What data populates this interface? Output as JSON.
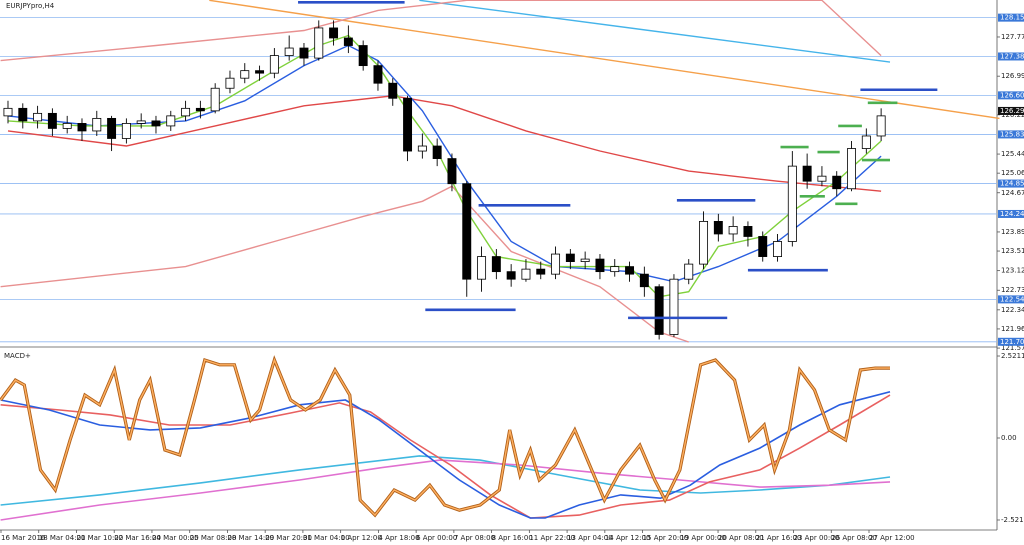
{
  "chart_data": [
    {
      "type": "candlestick",
      "title": "EURJPYpro,H4",
      "open": [
        126.2,
        126.35,
        126.1,
        126.25,
        125.95,
        126.05,
        125.9,
        126.15,
        125.75,
        126.05,
        126.1,
        126.0,
        126.2,
        126.35,
        126.3,
        126.75,
        126.95,
        127.1,
        127.05,
        127.4,
        127.55,
        127.35,
        127.95,
        127.75,
        127.6,
        127.2,
        126.85,
        126.55,
        125.5,
        125.6,
        125.35,
        124.85,
        122.95,
        123.4,
        123.1,
        122.95,
        123.15,
        123.05,
        123.45,
        123.3,
        123.35,
        123.1,
        123.2,
        123.05,
        122.8,
        121.85,
        122.95,
        123.25,
        124.1,
        123.85,
        124.0,
        123.8,
        123.4,
        123.7,
        125.2,
        124.9,
        125.0,
        124.75,
        125.55,
        125.8
      ],
      "high": [
        126.5,
        126.45,
        126.4,
        126.35,
        126.2,
        126.15,
        126.3,
        126.2,
        126.15,
        126.25,
        126.2,
        126.3,
        126.5,
        126.5,
        126.85,
        127.1,
        127.25,
        127.2,
        127.55,
        127.8,
        127.65,
        128.1,
        128.1,
        128.0,
        127.7,
        127.3,
        126.95,
        126.6,
        125.85,
        125.75,
        125.45,
        124.9,
        123.6,
        123.55,
        123.25,
        123.35,
        123.3,
        123.6,
        123.55,
        123.5,
        123.45,
        123.35,
        123.3,
        123.2,
        122.85,
        123.05,
        123.35,
        124.3,
        124.25,
        124.2,
        124.1,
        123.9,
        123.85,
        125.5,
        125.45,
        125.2,
        125.1,
        125.7,
        125.95,
        126.35
      ],
      "low": [
        126.05,
        125.95,
        125.95,
        125.8,
        125.85,
        125.7,
        125.8,
        125.5,
        125.65,
        125.95,
        125.85,
        125.9,
        126.1,
        126.15,
        126.25,
        126.65,
        126.85,
        126.9,
        126.95,
        127.3,
        127.2,
        127.3,
        127.6,
        127.45,
        127.1,
        126.7,
        126.4,
        125.3,
        125.35,
        125.2,
        124.7,
        122.6,
        122.7,
        122.95,
        122.8,
        122.9,
        122.95,
        122.95,
        123.15,
        123.15,
        122.95,
        123.0,
        122.9,
        122.6,
        121.75,
        121.8,
        122.85,
        123.15,
        123.7,
        123.7,
        123.6,
        123.3,
        123.3,
        123.6,
        124.75,
        124.8,
        124.6,
        124.7,
        125.45,
        125.7
      ],
      "close": [
        126.35,
        126.1,
        126.25,
        125.95,
        126.05,
        125.9,
        126.15,
        125.75,
        126.05,
        126.1,
        126.0,
        126.2,
        126.35,
        126.3,
        126.75,
        126.95,
        127.1,
        127.05,
        127.4,
        127.55,
        127.35,
        127.95,
        127.75,
        127.6,
        127.2,
        126.85,
        126.55,
        125.5,
        125.6,
        125.35,
        124.85,
        122.95,
        123.4,
        123.1,
        122.95,
        123.15,
        123.05,
        123.45,
        123.3,
        123.35,
        123.1,
        123.2,
        123.05,
        122.8,
        121.85,
        122.95,
        123.25,
        124.1,
        123.85,
        124.0,
        123.8,
        123.4,
        123.7,
        125.2,
        124.9,
        125.0,
        124.75,
        125.55,
        125.8,
        126.2
      ],
      "bull_color": "#ffffff",
      "bear_color": "#000000",
      "xlim": [
        -0.54,
        66.83
      ],
      "ylim": [
        121.68,
        128.506
      ],
      "yticks": [
        {
          "value": 127.77,
          "label": "127.770"
        },
        {
          "value": 126.99,
          "label": "126.990"
        },
        {
          "value": 126.22,
          "label": "126.220"
        },
        {
          "value": 125.44,
          "label": "125.440"
        },
        {
          "value": 125.06,
          "label": "125.060"
        },
        {
          "value": 124.67,
          "label": "124.670"
        },
        {
          "value": 123.89,
          "label": "123.890"
        },
        {
          "value": 123.51,
          "label": "123.510"
        },
        {
          "value": 123.12,
          "label": "123.120"
        },
        {
          "value": 122.73,
          "label": "122.730"
        },
        {
          "value": 122.34,
          "label": "122.340"
        },
        {
          "value": 121.96,
          "label": "121.960"
        },
        121.579
      ],
      "levels": [
        128.155,
        127.382,
        126.608,
        125.831,
        124.853,
        124.248,
        122.548,
        121.704
      ],
      "level_color": "#8fb8f2",
      "last_price": 126.298,
      "lines": [
        {
          "color": "#f5a04a",
          "x": [
            13.6,
            67
          ],
          "values": [
            128.5,
            126.15
          ]
        },
        {
          "color": "#45b4ea",
          "x": [
            27.8,
            59.6
          ],
          "values": [
            128.5,
            127.27
          ]
        },
        {
          "color": "#e89090",
          "x": [
            -0.5,
            10,
            20,
            25,
            31,
            55,
            59
          ],
          "values": [
            127.3,
            127.6,
            127.9,
            128.3,
            128.5,
            128.5,
            127.4
          ]
        },
        {
          "color": "#e89090",
          "x": [
            -0.5,
            12,
            18,
            24,
            28,
            30,
            34,
            40,
            44,
            46
          ],
          "values": [
            122.8,
            123.2,
            123.7,
            124.2,
            124.5,
            124.8,
            123.5,
            122.8,
            121.9,
            121.7
          ]
        },
        {
          "color": "#e04848",
          "x": [
            0,
            8,
            14,
            20,
            26,
            30,
            35,
            40,
            46,
            52,
            59
          ],
          "values": [
            125.9,
            125.6,
            126.0,
            126.4,
            126.6,
            126.4,
            125.9,
            125.5,
            125.1,
            124.9,
            124.7
          ]
        },
        {
          "color": "#2a5ee0",
          "x": [
            0,
            6,
            12,
            16,
            20,
            23,
            25,
            28,
            31,
            34,
            37,
            42,
            45,
            48,
            52,
            56,
            59
          ],
          "values": [
            126.2,
            126.0,
            126.1,
            126.5,
            127.2,
            127.6,
            127.3,
            126.3,
            124.9,
            123.7,
            123.2,
            123.1,
            122.9,
            123.2,
            123.7,
            124.6,
            125.4
          ]
        },
        {
          "color": "#7fd13b",
          "x": [
            0,
            5,
            10,
            14,
            18,
            21,
            23,
            25,
            27,
            29,
            31,
            33,
            37,
            42,
            44,
            46,
            48,
            51,
            53,
            56,
            59
          ],
          "values": [
            126.1,
            126.0,
            126.0,
            126.4,
            127.1,
            127.6,
            127.8,
            127.2,
            126.3,
            125.5,
            124.3,
            123.4,
            123.2,
            123.2,
            122.6,
            122.7,
            123.6,
            123.8,
            124.3,
            124.9,
            125.7
          ]
        }
      ],
      "segments": [
        {
          "color": "#2b4fc7",
          "x0": [
            19.6,
            31.8,
            28.2,
            41.9,
            45.2,
            50.0,
            57.6
          ],
          "x1": [
            26.8,
            38.0,
            34.3,
            48.6,
            50.5,
            55.4,
            62.8
          ],
          "values": [
            128.46,
            124.42,
            122.34,
            122.18,
            124.52,
            123.13,
            126.72
          ]
        },
        {
          "color": "#4caf50",
          "x0": [
            58.1,
            56.1,
            52.2,
            54.7,
            57.7,
            53.5,
            55.9
          ],
          "x1": [
            60.1,
            57.7,
            54.1,
            56.2,
            59.6,
            55.2,
            57.4
          ],
          "values": [
            126.46,
            126.0,
            125.58,
            125.48,
            125.32,
            124.6,
            124.45
          ]
        }
      ]
    },
    {
      "type": "line",
      "title": "MACD+",
      "xlim": [
        -0.54,
        66.83
      ],
      "ylim": [
        -2.829,
        2.706
      ],
      "yticks": [
        2.5211,
        {
          "value": 0,
          "label": "0.00"
        },
        -2.5211
      ],
      "xlabels": [
        "16 Mar 2016",
        "18 Mar 04:00",
        "21 Mar 10:00",
        "22 Mar 16:00",
        "24 Mar 00:00",
        "25 Mar 08:00",
        "28 Mar 14:00",
        "29 Mar 20:00",
        "31 Mar 04:00",
        "1 Apr 12:00",
        "4 Apr 18:00",
        "6 Apr 00:00",
        "7 Apr 08:00",
        "8 Apr 16:00",
        "11 Apr 22:00",
        "13 Apr 04:00",
        "14 Apr 12:00",
        "15 Apr 20:00",
        "19 Apr 00:00",
        "20 Apr 08:00",
        "21 Apr 16:00",
        "23 Apr 00:00",
        "26 Apr 08:00",
        "27 Apr 12:00"
      ],
      "series": [
        {
          "color": "#40b8e0",
          "x": [
            -0.5,
            6.2,
            13.0,
            19.7,
            26.5,
            27.8,
            31.9,
            37.3,
            42.7,
            46.8,
            50.8,
            55.5,
            59.6
          ],
          "values": [
            -2.06,
            -1.75,
            -1.38,
            -0.98,
            -0.62,
            -0.55,
            -0.68,
            -1.14,
            -1.6,
            -1.69,
            -1.6,
            -1.45,
            -1.2
          ]
        },
        {
          "color": "#e070d0",
          "x": [
            -0.5,
            6.2,
            13.0,
            19.7,
            25.1,
            29.2,
            34.6,
            40.0,
            45.4,
            50.8,
            55.5,
            59.6
          ],
          "values": [
            -2.52,
            -2.06,
            -1.69,
            -1.29,
            -0.92,
            -0.68,
            -0.83,
            -1.08,
            -1.29,
            -1.51,
            -1.45,
            -1.35
          ]
        },
        {
          "color": "#e86060",
          "x": [
            -0.5,
            3.5,
            6.9,
            10.9,
            15.0,
            19.1,
            22.4,
            24.5,
            27.2,
            29.9,
            32.6,
            35.3,
            38.6,
            41.4,
            44.7,
            47.4,
            50.8,
            53.5,
            56.2,
            59.6
          ],
          "values": [
            1.02,
            0.86,
            0.71,
            0.4,
            0.4,
            0.77,
            1.08,
            0.8,
            -0.06,
            -0.83,
            -1.75,
            -2.46,
            -2.37,
            -2.06,
            -1.91,
            -1.35,
            -0.98,
            -0.31,
            0.4,
            1.32
          ]
        },
        {
          "color": "#2a5ee0",
          "x": [
            -0.5,
            2.8,
            6.2,
            9.6,
            13.0,
            16.4,
            19.7,
            22.8,
            25.1,
            27.8,
            30.5,
            33.2,
            35.3,
            36.3,
            38.6,
            41.4,
            44.1,
            46.1,
            48.1,
            50.8,
            53.5,
            56.2,
            59.6
          ],
          "values": [
            1.17,
            0.86,
            0.4,
            0.25,
            0.31,
            0.62,
            1.02,
            1.17,
            0.55,
            -0.37,
            -1.29,
            -2.06,
            -2.46,
            -2.46,
            -2.06,
            -1.75,
            -1.85,
            -1.45,
            -0.83,
            -0.31,
            0.4,
            1.02,
            1.42
          ]
        },
        {
          "color": "#ffb060",
          "outline": "#b0601a",
          "x": [
            -0.5,
            0.5,
            1.1,
            2.2,
            3.2,
            4.2,
            5.2,
            6.2,
            7.2,
            8.2,
            8.9,
            9.6,
            10.6,
            11.6,
            12.6,
            13.3,
            14.3,
            15.3,
            16.4,
            17.0,
            18.0,
            19.1,
            20.1,
            21.1,
            22.1,
            23.1,
            23.8,
            24.8,
            26.1,
            27.5,
            28.5,
            29.5,
            30.5,
            31.9,
            33.2,
            33.9,
            34.6,
            35.3,
            35.9,
            37.0,
            38.3,
            39.3,
            40.3,
            41.4,
            42.7,
            43.7,
            44.4,
            45.4,
            46.8,
            47.8,
            49.1,
            50.1,
            51.1,
            51.8,
            52.8,
            53.5,
            54.5,
            55.5,
            56.6,
            57.6,
            58.6,
            59.6
          ],
          "values": [
            1.17,
            1.78,
            1.63,
            -0.98,
            -1.6,
            -0.06,
            1.32,
            1.02,
            2.09,
            -0.06,
            1.17,
            1.78,
            -0.37,
            -0.52,
            1.17,
            2.4,
            2.25,
            2.25,
            0.55,
            0.86,
            2.4,
            1.17,
            0.86,
            1.17,
            2.09,
            1.32,
            -1.91,
            -2.37,
            -1.6,
            -1.91,
            -1.45,
            -2.06,
            -2.22,
            -2.06,
            -1.6,
            0.25,
            -1.14,
            -0.37,
            -1.29,
            -0.83,
            0.25,
            -0.83,
            -1.91,
            -0.98,
            -0.22,
            -1.29,
            -1.91,
            -0.98,
            2.25,
            2.4,
            1.78,
            -0.06,
            0.4,
            -0.98,
            0.25,
            2.09,
            1.48,
            0.25,
            -0.06,
            2.09,
            2.15,
            2.15
          ]
        }
      ]
    }
  ]
}
